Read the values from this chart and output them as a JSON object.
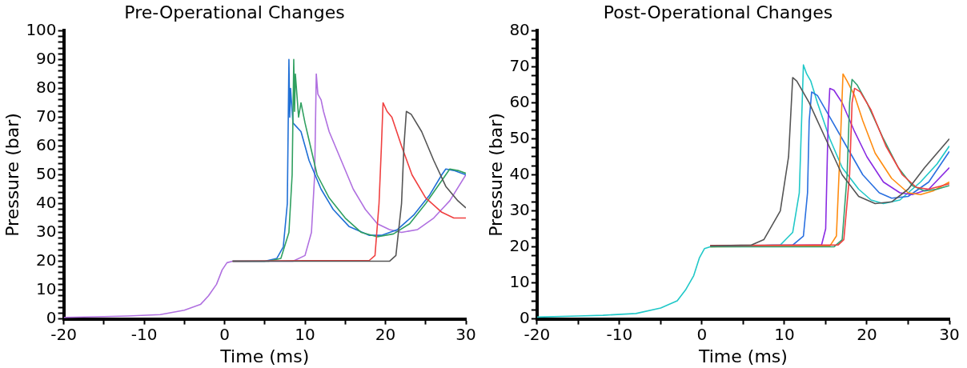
{
  "chart_data": [
    {
      "type": "line",
      "title": "Pre-Operational Changes",
      "xlabel": "Time (ms)",
      "ylabel": "Pressure (bar)",
      "xlim": [
        -20,
        30
      ],
      "ylim": [
        0,
        100
      ],
      "xticks": [
        -20,
        {
          "value": -15,
          "label": null
        },
        -10,
        {
          "value": -5,
          "label": null
        },
        0,
        {
          "value": 5,
          "label": null
        },
        10,
        {
          "value": 15,
          "label": null
        },
        20,
        {
          "value": 25,
          "label": null
        },
        30
      ],
      "yticks": [
        0,
        {
          "value": 2,
          "label": null
        },
        {
          "value": 4,
          "label": null
        },
        {
          "value": 6,
          "label": null
        },
        {
          "value": 8,
          "label": null
        },
        10,
        {
          "value": 12,
          "label": null
        },
        {
          "value": 14,
          "label": null
        },
        {
          "value": 16,
          "label": null
        },
        {
          "value": 18,
          "label": null
        },
        20,
        {
          "value": 22,
          "label": null
        },
        {
          "value": 24,
          "label": null
        },
        {
          "value": 26,
          "label": null
        },
        {
          "value": 28,
          "label": null
        },
        30,
        {
          "value": 32,
          "label": null
        },
        {
          "value": 34,
          "label": null
        },
        {
          "value": 36,
          "label": null
        },
        {
          "value": 38,
          "label": null
        },
        40,
        {
          "value": 42,
          "label": null
        },
        {
          "value": 44,
          "label": null
        },
        {
          "value": 46,
          "label": null
        },
        {
          "value": 48,
          "label": null
        },
        50,
        {
          "value": 52,
          "label": null
        },
        {
          "value": 54,
          "label": null
        },
        {
          "value": 56,
          "label": null
        },
        {
          "value": 58,
          "label": null
        },
        60,
        {
          "value": 62,
          "label": null
        },
        {
          "value": 64,
          "label": null
        },
        {
          "value": 66,
          "label": null
        },
        {
          "value": 68,
          "label": null
        },
        70,
        {
          "value": 72,
          "label": null
        },
        {
          "value": 74,
          "label": null
        },
        {
          "value": 76,
          "label": null
        },
        {
          "value": 78,
          "label": null
        },
        80,
        {
          "value": 82,
          "label": null
        },
        {
          "value": 84,
          "label": null
        },
        {
          "value": 86,
          "label": null
        },
        {
          "value": 88,
          "label": null
        },
        90,
        {
          "value": 92,
          "label": null
        },
        {
          "value": 94,
          "label": null
        },
        {
          "value": 96,
          "label": null
        },
        {
          "value": 98,
          "label": null
        },
        100
      ],
      "grid": false,
      "legend": false,
      "marker": "none",
      "line_style": "solid",
      "series": [
        {
          "color": "#555555",
          "x": [
            1,
            10,
            20.5,
            21.3,
            22,
            22.3,
            22.6,
            23.2,
            24.5,
            26,
            27.5,
            29,
            30
          ],
          "values": [
            20,
            20,
            20,
            22,
            40,
            60,
            72,
            71,
            65,
            55,
            46,
            41,
            38.5
          ]
        },
        {
          "color": "#f04040",
          "x": [
            1,
            10,
            18,
            18.7,
            19.2,
            19.5,
            19.7,
            20.2,
            20.8,
            22,
            23.3,
            25,
            27,
            28.5,
            30
          ],
          "values": [
            20,
            20.2,
            20.3,
            22,
            40,
            60,
            75,
            72,
            70,
            60,
            50,
            42,
            37,
            35,
            35
          ]
        },
        {
          "color": "#30a060",
          "x": [
            1,
            5.5,
            7,
            8,
            8.4,
            8.6,
            8.7,
            8.8,
            9.2,
            9.5,
            10,
            10.5,
            11.5,
            13,
            15,
            17,
            19,
            21,
            23,
            25,
            27,
            28,
            29,
            30
          ],
          "values": [
            20,
            20,
            21,
            30,
            50,
            90,
            72,
            85,
            70,
            75,
            68,
            62,
            50,
            42,
            35,
            30,
            28.5,
            29.5,
            33,
            40,
            48,
            52,
            51.5,
            50.5
          ]
        },
        {
          "color": "#1f6fd6",
          "x": [
            1,
            5,
            6.5,
            7.3,
            7.8,
            8,
            8.1,
            8.2,
            8.5,
            9.5,
            10.5,
            12,
            13.5,
            15.5,
            18,
            19.5,
            21.5,
            23.5,
            25.5,
            27,
            27.5,
            28.5,
            30
          ],
          "values": [
            20,
            20,
            21,
            25,
            40,
            90,
            70,
            80,
            68,
            65,
            55,
            45,
            38,
            32,
            29,
            29,
            31,
            36,
            43,
            50,
            52,
            51.5,
            50
          ]
        },
        {
          "color": "#b070e0",
          "x": [
            -20,
            -15,
            -12,
            -8,
            -5,
            -3,
            -2,
            -1,
            -0.3,
            0.3,
            1,
            8.5,
            10,
            10.8,
            11.2,
            11.4,
            11.6,
            12,
            12.3,
            13,
            14.5,
            16,
            17.5,
            19,
            20.5,
            22,
            24,
            26,
            28,
            30
          ],
          "values": [
            0.5,
            0.8,
            1,
            1.5,
            3,
            5,
            8,
            12,
            17,
            19.5,
            20,
            20,
            22,
            30,
            50,
            85,
            78,
            76,
            72,
            65,
            55,
            45,
            38,
            33,
            31,
            30,
            31,
            35,
            41,
            50
          ]
        }
      ]
    },
    {
      "type": "line",
      "title": "Post-Operational Changes",
      "xlabel": "Time (ms)",
      "ylabel": "Pressure (bar)",
      "xlim": [
        -20,
        30
      ],
      "ylim": [
        0,
        80
      ],
      "xticks": [
        -20,
        {
          "value": -15,
          "label": null
        },
        -10,
        {
          "value": -5,
          "label": null
        },
        0,
        {
          "value": 5,
          "label": null
        },
        10,
        {
          "value": 15,
          "label": null
        },
        20,
        {
          "value": 25,
          "label": null
        },
        30
      ],
      "yticks": [
        0,
        {
          "value": 2.5,
          "label": null
        },
        {
          "value": 5,
          "label": null
        },
        {
          "value": 7.5,
          "label": null
        },
        10,
        {
          "value": 12.5,
          "label": null
        },
        {
          "value": 15,
          "label": null
        },
        {
          "value": 17.5,
          "label": null
        },
        20,
        {
          "value": 22.5,
          "label": null
        },
        {
          "value": 25,
          "label": null
        },
        {
          "value": 27.5,
          "label": null
        },
        30,
        {
          "value": 32.5,
          "label": null
        },
        {
          "value": 35,
          "label": null
        },
        {
          "value": 37.5,
          "label": null
        },
        40,
        {
          "value": 42.5,
          "label": null
        },
        {
          "value": 45,
          "label": null
        },
        {
          "value": 47.5,
          "label": null
        },
        50,
        {
          "value": 52.5,
          "label": null
        },
        {
          "value": 55,
          "label": null
        },
        {
          "value": 57.5,
          "label": null
        },
        60,
        {
          "value": 62.5,
          "label": null
        },
        {
          "value": 65,
          "label": null
        },
        {
          "value": 67.5,
          "label": null
        },
        70,
        {
          "value": 72.5,
          "label": null
        },
        {
          "value": 75,
          "label": null
        },
        {
          "value": 77.5,
          "label": null
        },
        80
      ],
      "grid": false,
      "legend": false,
      "marker": "none",
      "line_style": "solid",
      "series": [
        {
          "color": "#555555",
          "x": [
            1,
            6,
            7.5,
            9.5,
            10.5,
            11,
            11.5,
            13,
            15,
            17,
            19,
            21,
            23,
            25,
            27,
            30
          ],
          "values": [
            20.3,
            20.5,
            22,
            30,
            45,
            67,
            66,
            60,
            50,
            40,
            34,
            32,
            32.5,
            36,
            42,
            50
          ]
        },
        {
          "color": "#f04040",
          "x": [
            1,
            16.5,
            17.2,
            17.9,
            18.2,
            18.5,
            19.2,
            20.5,
            22.3,
            24.3,
            26,
            27.5,
            30
          ],
          "values": [
            20.4,
            20.5,
            22,
            40,
            60,
            64,
            63,
            58,
            48,
            40,
            36.5,
            36,
            37.5
          ]
        },
        {
          "color": "#30a070",
          "x": [
            1,
            16,
            17,
            17.6,
            17.9,
            18.2,
            18.8,
            20,
            22,
            23.8,
            25.5,
            27,
            28.5,
            30
          ],
          "values": [
            20,
            20,
            22,
            40,
            60,
            66.5,
            65,
            60,
            50,
            42,
            37,
            35.5,
            36,
            37
          ]
        },
        {
          "color": "#ff8c10",
          "x": [
            1,
            15.5,
            16.3,
            16.8,
            17.1,
            17.6,
            18.5,
            19.5,
            21,
            23,
            25,
            26.5,
            28,
            30
          ],
          "values": [
            20,
            20.2,
            23,
            50,
            68,
            66,
            62,
            55,
            46,
            39,
            35,
            34.5,
            35.5,
            38
          ]
        },
        {
          "color": "#8a2be2",
          "x": [
            1,
            14.5,
            15,
            15.3,
            15.5,
            16,
            17,
            18.5,
            20,
            22,
            24,
            25.5,
            27.5,
            30
          ],
          "values": [
            20.3,
            20.5,
            25,
            55,
            64,
            63.5,
            60,
            52,
            45,
            38,
            35,
            34.5,
            36,
            42
          ]
        },
        {
          "color": "#2a70e0",
          "x": [
            1,
            11,
            12.3,
            12.8,
            13,
            13.3,
            14,
            15.5,
            17.5,
            19.5,
            21.5,
            23,
            25,
            27.5,
            30
          ],
          "values": [
            20.3,
            20.5,
            23,
            35,
            55,
            63,
            62,
            56,
            48,
            40,
            35,
            33.5,
            34,
            38,
            46.5
          ]
        },
        {
          "color": "#20c8c8",
          "x": [
            -20,
            -15,
            -12,
            -8,
            -5,
            -3,
            -2,
            -1,
            -0.3,
            0.3,
            1,
            9.5,
            11,
            11.8,
            12.3,
            12.7,
            13.2,
            14,
            15.5,
            17,
            19,
            20.5,
            22,
            24,
            26.5,
            28.5,
            30
          ],
          "values": [
            0.5,
            0.8,
            1,
            1.5,
            3,
            5,
            8,
            12,
            17,
            19.5,
            20,
            20.5,
            24,
            35,
            70.5,
            68,
            66,
            60,
            50,
            42,
            36,
            33,
            32,
            33,
            38,
            43,
            48
          ]
        }
      ]
    }
  ]
}
